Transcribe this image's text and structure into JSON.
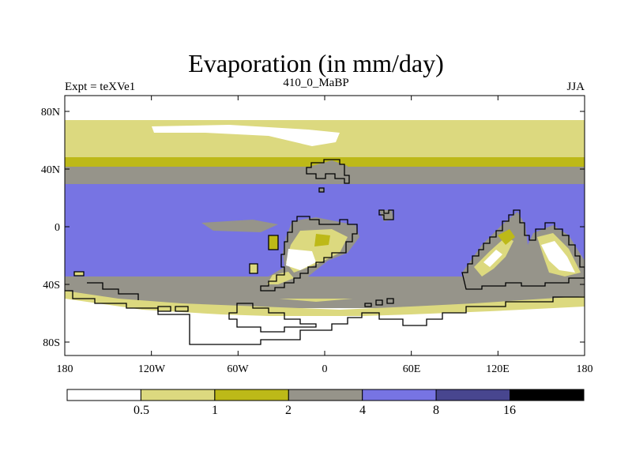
{
  "title": "Evaporation (in mm/day)",
  "subtitles": {
    "left": "Expt = teXVe1",
    "center": "410_0_MaBP",
    "right": "JJA"
  },
  "axes": {
    "lat_labels": [
      "80N",
      "40N",
      "0",
      "40S",
      "80S"
    ],
    "lon_labels": [
      "180",
      "120W",
      "60W",
      "0",
      "60E",
      "120E",
      "180"
    ]
  },
  "colorbar": {
    "bins": [
      {
        "color": "#ffffff"
      },
      {
        "color": "#dcd97f"
      },
      {
        "color": "#bdb918"
      },
      {
        "color": "#96948a"
      },
      {
        "color": "#7774e3"
      },
      {
        "color": "#48468f"
      },
      {
        "color": "#000000"
      }
    ],
    "labels": [
      "0.5",
      "1",
      "2",
      "4",
      "8",
      "16"
    ]
  },
  "chart_data": {
    "type": "heatmap",
    "title": "Evaporation (in mm/day)",
    "variable": "Evaporation",
    "units": "mm/day",
    "season": "JJA",
    "experiment": "teXVe1",
    "period": "410_0_MaBP",
    "lon_range": [
      -180,
      180
    ],
    "lat_range": [
      -90,
      90
    ],
    "levels": [
      0.5,
      1,
      2,
      4,
      8,
      16
    ],
    "zonal_bands": [
      {
        "lat_range": [
          73,
          90
        ],
        "range": "<0.5"
      },
      {
        "lat_range": [
          47,
          73
        ],
        "range": "0.5-1"
      },
      {
        "lat_range": [
          42,
          47
        ],
        "range": "1-2"
      },
      {
        "lat_range": [
          30,
          42
        ],
        "range": "2-4"
      },
      {
        "lat_range": [
          -33,
          30
        ],
        "range": "4-8"
      },
      {
        "lat_range": [
          -47,
          -33
        ],
        "range": "2-4"
      },
      {
        "lat_range": [
          -55,
          -47
        ],
        "range": "0.5-2"
      },
      {
        "lat_range": [
          -90,
          -55
        ],
        "range": "<0.5"
      }
    ]
  }
}
